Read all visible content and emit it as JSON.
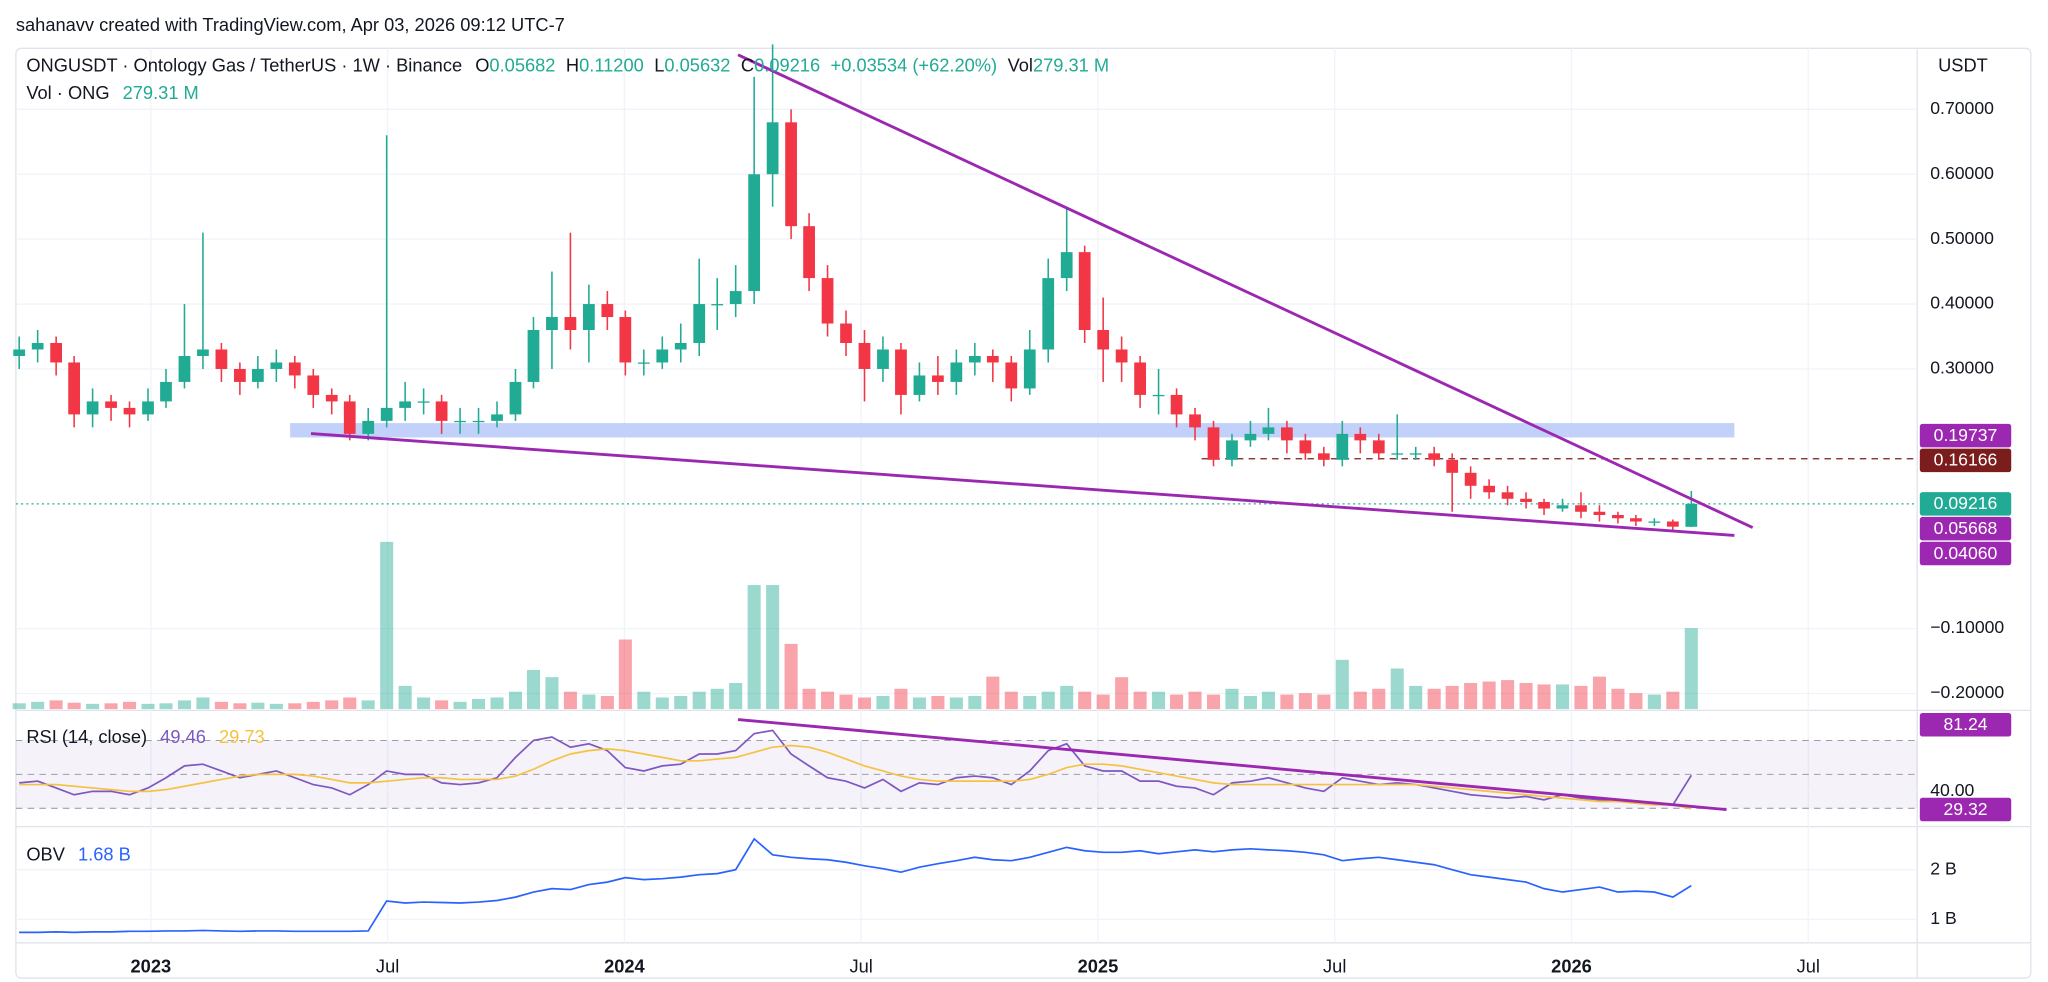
{
  "attribution": "sahanavv created with TradingView.com, Apr 03, 2026 09:12 UTC-7",
  "chart_data": {
    "type": "candlestick",
    "title": "ONGUSDT · Ontology Gas / TetherUS · 1W · Binance",
    "header_stats": [
      {
        "key": "O",
        "value": "0.05682"
      },
      {
        "key": "H",
        "value": "0.11200"
      },
      {
        "key": "L",
        "value": "0.05632"
      },
      {
        "key": "C",
        "value": "0.09216"
      }
    ],
    "change": "+0.03534 (+62.20%)",
    "axis_unit": "USDT",
    "up_color": "#22ab94",
    "down_color": "#f23645",
    "grid": true,
    "xlim": [
      2022.715,
      2026.73
    ],
    "xticks": [
      2023,
      {
        "value": 2023.5,
        "label": "Jul"
      },
      2024,
      {
        "value": 2024.5,
        "label": "Jul"
      },
      2025,
      {
        "value": 2025.5,
        "label": "Jul"
      },
      2026,
      {
        "value": 2026.5,
        "label": "Jul"
      }
    ],
    "ylim": [
      -0.224,
      0.794
    ],
    "yticks": [
      {
        "value": 0.7,
        "label": "0.70000"
      },
      {
        "value": 0.6,
        "label": "0.60000"
      },
      {
        "value": 0.5,
        "label": "0.50000"
      },
      {
        "value": 0.4,
        "label": "0.40000"
      },
      {
        "value": 0.3,
        "label": "0.30000"
      },
      {
        "value": -0.1,
        "label": "−0.10000"
      },
      {
        "value": -0.2,
        "label": "−0.20000"
      }
    ],
    "y2lim": [
      0,
      2280
    ],
    "x": [
      2022.722,
      2022.761,
      2022.8,
      2022.838,
      2022.877,
      2022.916,
      2022.955,
      2022.994,
      2023.032,
      2023.071,
      2023.11,
      2023.149,
      2023.188,
      2023.226,
      2023.265,
      2023.304,
      2023.343,
      2023.382,
      2023.42,
      2023.459,
      2023.498,
      2023.537,
      2023.576,
      2023.614,
      2023.653,
      2023.692,
      2023.731,
      2023.77,
      2023.808,
      2023.847,
      2023.886,
      2023.925,
      2023.964,
      2024.002,
      2024.041,
      2024.08,
      2024.119,
      2024.158,
      2024.196,
      2024.235,
      2024.274,
      2024.313,
      2024.352,
      2024.39,
      2024.429,
      2024.468,
      2024.507,
      2024.546,
      2024.584,
      2024.623,
      2024.662,
      2024.701,
      2024.74,
      2024.778,
      2024.817,
      2024.856,
      2024.895,
      2024.934,
      2024.972,
      2025.011,
      2025.05,
      2025.089,
      2025.128,
      2025.166,
      2025.205,
      2025.244,
      2025.283,
      2025.322,
      2025.36,
      2025.399,
      2025.438,
      2025.477,
      2025.516,
      2025.554,
      2025.593,
      2025.632,
      2025.671,
      2025.71,
      2025.748,
      2025.787,
      2025.826,
      2025.865,
      2025.904,
      2025.942,
      2025.981,
      2026.02,
      2026.059,
      2026.098,
      2026.136,
      2026.175,
      2026.214,
      2026.253
    ],
    "open": [
      0.32,
      0.33,
      0.34,
      0.31,
      0.23,
      0.25,
      0.24,
      0.23,
      0.25,
      0.28,
      0.32,
      0.33,
      0.3,
      0.28,
      0.3,
      0.31,
      0.29,
      0.26,
      0.25,
      0.2,
      0.22,
      0.24,
      0.25,
      0.25,
      0.22,
      0.22,
      0.22,
      0.23,
      0.28,
      0.36,
      0.38,
      0.36,
      0.4,
      0.38,
      0.31,
      0.31,
      0.33,
      0.34,
      0.4,
      0.4,
      0.42,
      0.6,
      0.68,
      0.52,
      0.44,
      0.37,
      0.34,
      0.3,
      0.33,
      0.26,
      0.29,
      0.28,
      0.31,
      0.32,
      0.31,
      0.27,
      0.33,
      0.44,
      0.48,
      0.36,
      0.33,
      0.31,
      0.26,
      0.26,
      0.23,
      0.21,
      0.16,
      0.19,
      0.2,
      0.21,
      0.19,
      0.17,
      0.16,
      0.2,
      0.19,
      0.17,
      0.17,
      0.17,
      0.16,
      0.14,
      0.12,
      0.11,
      0.1,
      0.095,
      0.085,
      0.09,
      0.08,
      0.075,
      0.07,
      0.065,
      0.065,
      0.05682
    ],
    "high": [
      0.35,
      0.36,
      0.35,
      0.32,
      0.27,
      0.26,
      0.25,
      0.27,
      0.3,
      0.4,
      0.51,
      0.34,
      0.31,
      0.32,
      0.33,
      0.32,
      0.3,
      0.27,
      0.26,
      0.24,
      0.66,
      0.28,
      0.27,
      0.26,
      0.24,
      0.24,
      0.25,
      0.3,
      0.38,
      0.45,
      0.51,
      0.43,
      0.42,
      0.39,
      0.33,
      0.35,
      0.37,
      0.47,
      0.44,
      0.46,
      0.75,
      0.8,
      0.7,
      0.54,
      0.46,
      0.39,
      0.36,
      0.35,
      0.34,
      0.31,
      0.32,
      0.33,
      0.34,
      0.33,
      0.32,
      0.36,
      0.47,
      0.55,
      0.49,
      0.41,
      0.35,
      0.32,
      0.3,
      0.27,
      0.24,
      0.22,
      0.2,
      0.22,
      0.24,
      0.22,
      0.2,
      0.18,
      0.22,
      0.21,
      0.2,
      0.23,
      0.18,
      0.18,
      0.17,
      0.15,
      0.13,
      0.12,
      0.11,
      0.1,
      0.1,
      0.11,
      0.09,
      0.08,
      0.075,
      0.07,
      0.068,
      0.112
    ],
    "low": [
      0.3,
      0.31,
      0.29,
      0.21,
      0.21,
      0.22,
      0.21,
      0.22,
      0.24,
      0.27,
      0.3,
      0.28,
      0.26,
      0.27,
      0.28,
      0.27,
      0.24,
      0.23,
      0.19,
      0.19,
      0.21,
      0.22,
      0.23,
      0.2,
      0.2,
      0.2,
      0.21,
      0.22,
      0.27,
      0.3,
      0.33,
      0.31,
      0.36,
      0.29,
      0.29,
      0.3,
      0.31,
      0.32,
      0.36,
      0.38,
      0.4,
      0.55,
      0.5,
      0.42,
      0.35,
      0.32,
      0.25,
      0.28,
      0.23,
      0.25,
      0.26,
      0.26,
      0.29,
      0.28,
      0.25,
      0.26,
      0.31,
      0.42,
      0.34,
      0.28,
      0.28,
      0.24,
      0.23,
      0.21,
      0.19,
      0.15,
      0.15,
      0.18,
      0.19,
      0.17,
      0.16,
      0.15,
      0.15,
      0.17,
      0.16,
      0.16,
      0.16,
      0.15,
      0.08,
      0.1,
      0.1,
      0.09,
      0.085,
      0.075,
      0.08,
      0.07,
      0.065,
      0.062,
      0.058,
      0.058,
      0.052,
      0.05632
    ],
    "close": [
      0.33,
      0.34,
      0.31,
      0.23,
      0.25,
      0.24,
      0.23,
      0.25,
      0.28,
      0.32,
      0.33,
      0.3,
      0.28,
      0.3,
      0.31,
      0.29,
      0.26,
      0.25,
      0.2,
      0.22,
      0.24,
      0.25,
      0.25,
      0.22,
      0.22,
      0.22,
      0.23,
      0.28,
      0.36,
      0.38,
      0.36,
      0.4,
      0.38,
      0.31,
      0.31,
      0.33,
      0.34,
      0.4,
      0.4,
      0.42,
      0.6,
      0.68,
      0.52,
      0.44,
      0.37,
      0.34,
      0.3,
      0.33,
      0.26,
      0.29,
      0.28,
      0.31,
      0.32,
      0.31,
      0.27,
      0.33,
      0.44,
      0.48,
      0.36,
      0.33,
      0.31,
      0.26,
      0.26,
      0.23,
      0.21,
      0.16,
      0.19,
      0.2,
      0.21,
      0.19,
      0.17,
      0.16,
      0.2,
      0.19,
      0.17,
      0.17,
      0.17,
      0.16,
      0.14,
      0.12,
      0.11,
      0.1,
      0.095,
      0.085,
      0.09,
      0.08,
      0.075,
      0.07,
      0.065,
      0.065,
      0.057,
      0.09216
    ],
    "volume": {
      "key": "Vol",
      "name": "Vol · ONG",
      "value_label": "279.31 M",
      "axis": "y2",
      "values": [
        20,
        25,
        30,
        22,
        18,
        20,
        25,
        18,
        20,
        30,
        40,
        25,
        20,
        22,
        18,
        20,
        25,
        30,
        40,
        30,
        577,
        80,
        40,
        30,
        25,
        35,
        40,
        60,
        135,
        110,
        60,
        50,
        45,
        240,
        60,
        40,
        45,
        60,
        70,
        90,
        428,
        428,
        225,
        70,
        60,
        50,
        40,
        45,
        70,
        40,
        45,
        40,
        45,
        112,
        60,
        45,
        60,
        80,
        60,
        50,
        110,
        60,
        60,
        50,
        60,
        50,
        70,
        45,
        60,
        50,
        55,
        50,
        170,
        60,
        70,
        140,
        80,
        70,
        80,
        90,
        95,
        100,
        90,
        85,
        85,
        80,
        112,
        70,
        55,
        50,
        60,
        279.31
      ]
    },
    "price_labels": [
      {
        "value": 0.19737,
        "color": "#9c27b0"
      },
      {
        "value": 0.16166,
        "color": "#7b1d1d",
        "line": "dashed"
      },
      {
        "value": 0.09216,
        "color": "#22ab94",
        "line": "dotted"
      },
      {
        "value": 0.05668,
        "color": "#9c27b0"
      },
      {
        "value": 0.0406,
        "label": "0.04060",
        "color": "#9c27b0"
      }
    ],
    "indicators": [
      {
        "type": "line",
        "title": "RSI (14, close)",
        "ylim": [
          20,
          86.2
        ],
        "yticks": [
          {
            "value": 40,
            "label": "40.00"
          }
        ],
        "levels": [
          70,
          50,
          30
        ],
        "series": [
          {
            "color": "#7e57c2",
            "value_label": "49.46",
            "values": [
              45,
              46,
              42,
              38,
              40,
              40,
              38,
              42,
              48,
              55,
              56,
              52,
              48,
              50,
              52,
              48,
              44,
              42,
              38,
              44,
              52,
              50,
              50,
              45,
              44,
              45,
              48,
              60,
              70,
              72,
              66,
              68,
              64,
              54,
              52,
              55,
              56,
              62,
              62,
              64,
              74,
              76,
              62,
              55,
              48,
              46,
              42,
              47,
              40,
              45,
              44,
              48,
              49,
              48,
              44,
              52,
              64,
              68,
              55,
              52,
              52,
              46,
              46,
              43,
              42,
              38,
              45,
              46,
              48,
              45,
              42,
              40,
              48,
              46,
              44,
              45,
              44,
              42,
              40,
              38,
              37,
              36,
              37,
              35,
              38,
              36,
              35,
              34,
              34,
              33,
              32,
              49.46
            ]
          },
          {
            "color": "#f5c342",
            "value_label": "29.73",
            "values": [
              44,
              44,
              44,
              43,
              42,
              41,
              40,
              40,
              41,
              43,
              45,
              47,
              49,
              50,
              50,
              50,
              49,
              47,
              45,
              45,
              46,
              47,
              48,
              48,
              47,
              47,
              47,
              49,
              53,
              58,
              62,
              64,
              65,
              64,
              62,
              60,
              58,
              58,
              59,
              60,
              63,
              66,
              67,
              66,
              63,
              59,
              55,
              52,
              49,
              47,
              46,
              46,
              46,
              46,
              46,
              47,
              50,
              54,
              56,
              56,
              55,
              53,
              51,
              49,
              47,
              45,
              44,
              44,
              44,
              44,
              44,
              44,
              44,
              44,
              44,
              44,
              44,
              43,
              42,
              41,
              40,
              39,
              38,
              37,
              36,
              35,
              34,
              34,
              33,
              32,
              32,
              29.73
            ]
          }
        ],
        "price_labels": [
          {
            "value": 81.24,
            "color": "#9c27b0"
          },
          {
            "value": 29.32,
            "color": "#9c27b0"
          }
        ]
      },
      {
        "type": "line",
        "title": "OBV",
        "ylim": [
          0.53,
          2.84
        ],
        "yticks": [
          {
            "value": 2,
            "label": "2 B"
          },
          {
            "value": 1,
            "label": "1 B"
          }
        ],
        "series": [
          {
            "color": "#2962ff",
            "value_label": "1.68 B",
            "values": [
              0.74,
              0.74,
              0.75,
              0.74,
              0.75,
              0.75,
              0.76,
              0.76,
              0.77,
              0.77,
              0.78,
              0.77,
              0.76,
              0.77,
              0.77,
              0.76,
              0.76,
              0.76,
              0.76,
              0.77,
              1.37,
              1.33,
              1.35,
              1.34,
              1.33,
              1.35,
              1.38,
              1.45,
              1.55,
              1.62,
              1.6,
              1.7,
              1.75,
              1.84,
              1.8,
              1.82,
              1.85,
              1.9,
              1.92,
              2.0,
              2.62,
              2.3,
              2.25,
              2.22,
              2.2,
              2.15,
              2.08,
              2.02,
              1.95,
              2.05,
              2.12,
              2.18,
              2.25,
              2.2,
              2.18,
              2.25,
              2.35,
              2.45,
              2.38,
              2.35,
              2.35,
              2.38,
              2.32,
              2.36,
              2.4,
              2.36,
              2.4,
              2.42,
              2.4,
              2.38,
              2.35,
              2.3,
              2.18,
              2.22,
              2.25,
              2.2,
              2.15,
              2.1,
              2.0,
              1.9,
              1.85,
              1.8,
              1.75,
              1.62,
              1.55,
              1.6,
              1.65,
              1.55,
              1.57,
              1.55,
              1.45,
              1.68
            ]
          }
        ]
      }
    ]
  }
}
